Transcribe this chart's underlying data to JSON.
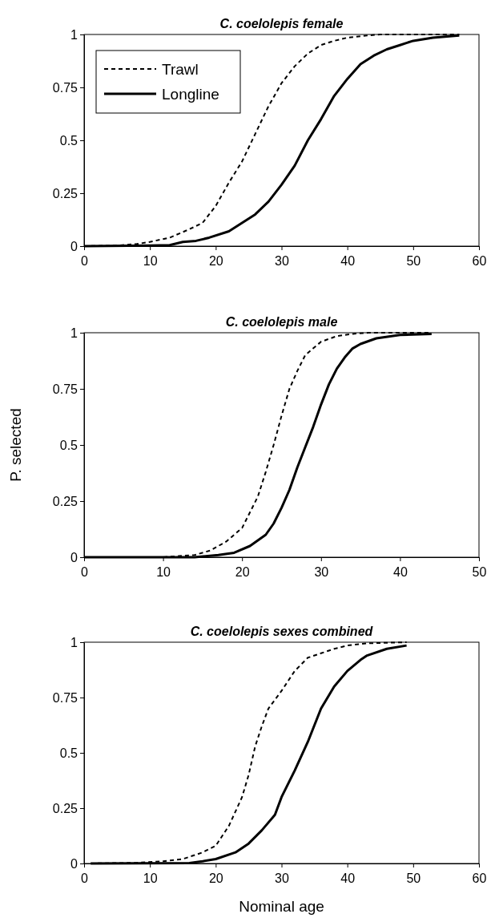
{
  "chart_data": [
    {
      "type": "line",
      "title": "C. coelolepis female",
      "legend": "top left",
      "grid": false,
      "xlim": [
        0,
        60
      ],
      "xticks": [
        0,
        10,
        20,
        30,
        40,
        50,
        60
      ],
      "ylim": [
        0,
        1
      ],
      "yticks": [
        0,
        0.25,
        0.5,
        0.75,
        1
      ],
      "series": [
        {
          "name": "Trawl",
          "color": "#000000",
          "line_style": "dashed",
          "x": [
            0,
            5,
            8,
            10,
            13,
            16,
            18,
            20,
            22,
            24,
            26,
            28,
            30,
            32,
            34,
            36,
            38,
            40,
            43,
            45,
            57
          ],
          "values": [
            0,
            0.003,
            0.01,
            0.02,
            0.04,
            0.08,
            0.11,
            0.19,
            0.3,
            0.4,
            0.53,
            0.66,
            0.77,
            0.85,
            0.91,
            0.95,
            0.97,
            0.985,
            0.995,
            1,
            1
          ]
        },
        {
          "name": "Longline",
          "color": "#000000",
          "line_style": "solid",
          "x": [
            0,
            10,
            13,
            15,
            17,
            19,
            22,
            24,
            26,
            28,
            30,
            32,
            34,
            36,
            38,
            40,
            42,
            44,
            46,
            48,
            50,
            53,
            57
          ],
          "values": [
            0,
            0.003,
            0.005,
            0.02,
            0.025,
            0.04,
            0.07,
            0.11,
            0.15,
            0.21,
            0.29,
            0.38,
            0.5,
            0.6,
            0.71,
            0.79,
            0.86,
            0.9,
            0.93,
            0.95,
            0.97,
            0.985,
            0.995
          ]
        }
      ]
    },
    {
      "type": "line",
      "title": "C. coelolepis male",
      "ylabel": "P. selected",
      "legend": false,
      "grid": false,
      "xlim": [
        0,
        50
      ],
      "xticks": [
        0,
        10,
        20,
        30,
        40,
        50
      ],
      "ylim": [
        0,
        1
      ],
      "yticks": [
        0,
        0.25,
        0.5,
        0.75,
        1
      ],
      "series": [
        {
          "color": "#000000",
          "line_style": "dashed",
          "x": [
            0,
            10,
            12,
            14,
            16,
            18,
            20,
            22,
            23,
            24,
            25,
            26,
            27,
            28,
            29,
            30,
            32,
            34,
            36,
            44
          ],
          "values": [
            0,
            0,
            0.005,
            0.01,
            0.03,
            0.07,
            0.13,
            0.27,
            0.38,
            0.5,
            0.63,
            0.75,
            0.83,
            0.9,
            0.93,
            0.96,
            0.985,
            0.995,
            1,
            1
          ]
        },
        {
          "color": "#000000",
          "line_style": "solid",
          "x": [
            0,
            14,
            17,
            19,
            21,
            23,
            24,
            25,
            26,
            27,
            28,
            29,
            30,
            31,
            32,
            33,
            34,
            35,
            37,
            40,
            44
          ],
          "values": [
            0,
            0,
            0.01,
            0.02,
            0.05,
            0.1,
            0.15,
            0.22,
            0.3,
            0.4,
            0.49,
            0.58,
            0.68,
            0.77,
            0.84,
            0.89,
            0.93,
            0.95,
            0.975,
            0.99,
            0.995
          ]
        }
      ]
    },
    {
      "type": "line",
      "title": "C. coelolepis sexes combined",
      "xlabel": "Nominal age",
      "legend": false,
      "grid": false,
      "xlim": [
        0,
        60
      ],
      "xticks": [
        0,
        10,
        20,
        30,
        40,
        50,
        60
      ],
      "ylim": [
        0,
        1
      ],
      "yticks": [
        0,
        0.25,
        0.5,
        0.75,
        1
      ],
      "series": [
        {
          "color": "#000000",
          "line_style": "dashed",
          "x": [
            1,
            8,
            12,
            15,
            18,
            20,
            22,
            24,
            25,
            26,
            27,
            28,
            30,
            32,
            34,
            36,
            38,
            40,
            43,
            49
          ],
          "values": [
            0,
            0.003,
            0.01,
            0.02,
            0.05,
            0.08,
            0.17,
            0.3,
            0.4,
            0.53,
            0.62,
            0.7,
            0.78,
            0.87,
            0.93,
            0.95,
            0.97,
            0.985,
            0.995,
            1
          ]
        },
        {
          "color": "#000000",
          "line_style": "solid",
          "x": [
            1,
            16,
            18,
            20,
            23,
            25,
            27,
            29,
            30,
            32,
            34,
            36,
            38,
            40,
            42,
            43,
            46,
            49
          ],
          "values": [
            0,
            0.002,
            0.01,
            0.02,
            0.05,
            0.09,
            0.15,
            0.22,
            0.3,
            0.42,
            0.55,
            0.7,
            0.8,
            0.87,
            0.92,
            0.94,
            0.97,
            0.985
          ]
        }
      ]
    }
  ]
}
